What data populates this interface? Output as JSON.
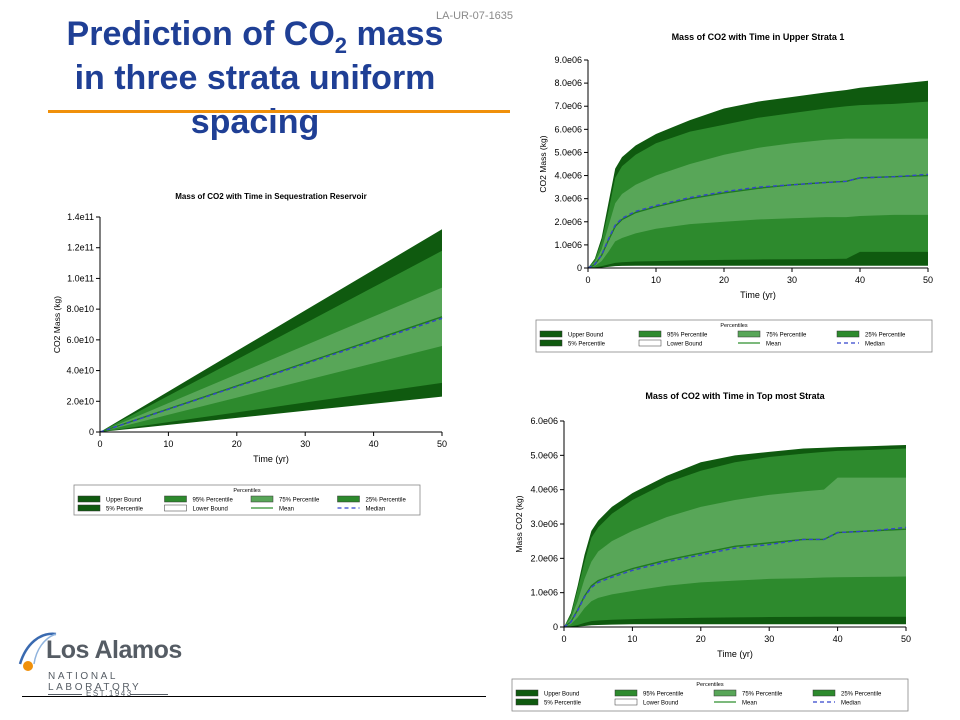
{
  "slide": {
    "title_line1_pre": "Prediction of CO",
    "title_line1_sub": "2",
    "title_line1_post": " mass",
    "title_line2": "in three strata uniform",
    "title_line3": "spacing",
    "report_id": "LA-UR-07-1635",
    "colors": {
      "title": "#1f3f95",
      "accent_rule": "#f0900a"
    }
  },
  "logo": {
    "name": "Los Alamos",
    "subtitle": "NATIONAL LABORATORY",
    "established": "EST.1943"
  },
  "legend": {
    "header": "Percentiles",
    "items": [
      {
        "label": "Upper Bound",
        "color": "#0f5a0f",
        "style": "fill"
      },
      {
        "label": "95% Percentile",
        "color": "#2d8a2d",
        "style": "fill"
      },
      {
        "label": "75% Percentile",
        "color": "#58a658",
        "style": "fill"
      },
      {
        "label": "25% Percentile",
        "color": "#2d8a2d",
        "style": "fill"
      },
      {
        "label": "5% Percentile",
        "color": "#0f5a0f",
        "style": "fill"
      },
      {
        "label": "Lower Bound",
        "color": "#ffffff",
        "style": "fill"
      },
      {
        "label": "Mean",
        "color": "#2f8f2f",
        "style": "line"
      },
      {
        "label": "Median",
        "color": "#3344cc",
        "style": "dash"
      }
    ]
  },
  "chart_data": [
    {
      "type": "area",
      "title": "Mass of CO2 with Time in Sequestration Reservoir",
      "xlabel": "Time (yr)",
      "ylabel": "CO2 Mass (kg)",
      "xlim": [
        0,
        50
      ],
      "ylim": [
        0,
        140000000000
      ],
      "xticks": [
        0,
        10,
        20,
        30,
        40,
        50
      ],
      "xtick_labels": [
        "0",
        "10",
        "20",
        "30",
        "40",
        "50"
      ],
      "yticks": [
        0,
        20000000000,
        40000000000,
        60000000000,
        80000000000,
        100000000000,
        120000000000,
        140000000000
      ],
      "ytick_labels": [
        "0",
        "2.0e10",
        "4.0e10",
        "6.0e10",
        "8.0e10",
        "1.0e11",
        "1.2e11",
        "1.4e11"
      ],
      "x": [
        0,
        10,
        20,
        30,
        40,
        50
      ],
      "series": [
        {
          "name": "Upper Bound",
          "values": [
            0,
            26400000000,
            52800000000,
            79200000000,
            105600000000,
            132000000000
          ]
        },
        {
          "name": "95% Percentile",
          "values": [
            0,
            23600000000,
            47200000000,
            70800000000,
            94400000000,
            118000000000
          ]
        },
        {
          "name": "75% Percentile",
          "values": [
            0,
            18800000000,
            37600000000,
            56400000000,
            75200000000,
            94000000000
          ]
        },
        {
          "name": "Mean",
          "values": [
            0,
            15000000000,
            30000000000,
            45000000000,
            60000000000,
            75000000000
          ]
        },
        {
          "name": "Median",
          "values": [
            0,
            14800000000,
            29600000000,
            44400000000,
            59200000000,
            74000000000
          ]
        },
        {
          "name": "25% Percentile",
          "values": [
            0,
            11200000000,
            22400000000,
            33600000000,
            44800000000,
            56000000000
          ]
        },
        {
          "name": "5% Percentile",
          "values": [
            0,
            6400000000,
            12800000000,
            19200000000,
            25600000000,
            32000000000
          ]
        },
        {
          "name": "Lower Bound",
          "values": [
            0,
            4600000000,
            9200000000,
            13800000000,
            18400000000,
            23000000000
          ]
        }
      ],
      "grid": false,
      "legend_position": "bottom"
    },
    {
      "type": "area",
      "title": "Mass of CO2 with Time in Upper Strata 1",
      "xlabel": "Time (yr)",
      "ylabel": "CO2 Mass (kg)",
      "xlim": [
        0,
        50
      ],
      "ylim": [
        0,
        9000000
      ],
      "xticks": [
        0,
        10,
        20,
        30,
        40,
        50
      ],
      "xtick_labels": [
        "0",
        "10",
        "20",
        "30",
        "40",
        "50"
      ],
      "yticks": [
        0,
        1000000,
        2000000,
        3000000,
        4000000,
        5000000,
        6000000,
        7000000,
        8000000,
        9000000
      ],
      "ytick_labels": [
        "0",
        "1.0e06",
        "2.0e06",
        "3.0e06",
        "4.0e06",
        "5.0e06",
        "6.0e06",
        "7.0e06",
        "8.0e06",
        "9.0e06"
      ],
      "x": [
        0,
        1,
        2,
        3,
        4,
        5,
        7,
        10,
        15,
        20,
        25,
        30,
        35,
        38,
        40,
        45,
        50
      ],
      "series": [
        {
          "name": "Upper Bound",
          "values": [
            0,
            400000,
            1300000,
            2800000,
            4300000,
            4800000,
            5300000,
            5800000,
            6400000,
            6900000,
            7200000,
            7400000,
            7600000,
            7700000,
            7800000,
            7950000,
            8100000
          ]
        },
        {
          "name": "95% Percentile",
          "values": [
            0,
            350000,
            1150000,
            2450000,
            3900000,
            4400000,
            4900000,
            5400000,
            5900000,
            6200000,
            6500000,
            6700000,
            6900000,
            7000000,
            7050000,
            7100000,
            7200000
          ]
        },
        {
          "name": "75% Percentile",
          "values": [
            0,
            250000,
            800000,
            1800000,
            2800000,
            3200000,
            3600000,
            4000000,
            4500000,
            4900000,
            5200000,
            5400000,
            5550000,
            5600000,
            5600000,
            5600000,
            5600000
          ]
        },
        {
          "name": "Mean",
          "values": [
            0,
            150000,
            550000,
            1200000,
            1800000,
            2100000,
            2400000,
            2650000,
            3000000,
            3250000,
            3450000,
            3600000,
            3700000,
            3750000,
            3900000,
            3950000,
            4000000
          ]
        },
        {
          "name": "Median",
          "values": [
            0,
            160000,
            560000,
            1250000,
            1850000,
            2150000,
            2450000,
            2700000,
            3050000,
            3300000,
            3500000,
            3600000,
            3700000,
            3750000,
            3900000,
            3950000,
            4050000
          ]
        },
        {
          "name": "25% Percentile",
          "values": [
            0,
            80000,
            300000,
            700000,
            1150000,
            1300000,
            1500000,
            1700000,
            1900000,
            2000000,
            2100000,
            2150000,
            2200000,
            2200000,
            2250000,
            2300000,
            2300000
          ]
        },
        {
          "name": "5% Percentile",
          "values": [
            0,
            20000,
            80000,
            150000,
            220000,
            250000,
            280000,
            300000,
            330000,
            350000,
            370000,
            380000,
            390000,
            400000,
            700000,
            700000,
            700000
          ]
        },
        {
          "name": "Lower Bound",
          "values": [
            0,
            5000,
            20000,
            50000,
            80000,
            90000,
            100000,
            100000,
            100000,
            100000,
            100000,
            100000,
            100000,
            100000,
            100000,
            100000,
            100000
          ]
        }
      ],
      "grid": false,
      "legend_position": "bottom"
    },
    {
      "type": "area",
      "title": "Mass of CO2 with Time in Top most Strata",
      "xlabel": "Time (yr)",
      "ylabel": "Mass CO2 (kg)",
      "xlim": [
        0,
        50
      ],
      "ylim": [
        0,
        6000000
      ],
      "xticks": [
        0,
        10,
        20,
        30,
        40,
        50
      ],
      "xtick_labels": [
        "0",
        "10",
        "20",
        "30",
        "40",
        "50"
      ],
      "yticks": [
        0,
        1000000,
        2000000,
        3000000,
        4000000,
        5000000,
        6000000
      ],
      "ytick_labels": [
        "0",
        "1.0e06",
        "2.0e06",
        "3.0e06",
        "4.0e06",
        "5.0e06",
        "6.0e06"
      ],
      "x": [
        0,
        1,
        2,
        3,
        4,
        5,
        7,
        10,
        15,
        20,
        25,
        30,
        35,
        38,
        40,
        45,
        50
      ],
      "series": [
        {
          "name": "Upper Bound",
          "values": [
            0,
            400000,
            1200000,
            2100000,
            2800000,
            3100000,
            3500000,
            3900000,
            4400000,
            4800000,
            5000000,
            5100000,
            5200000,
            5220000,
            5240000,
            5270000,
            5300000
          ]
        },
        {
          "name": "95% Percentile",
          "values": [
            0,
            350000,
            1100000,
            1900000,
            2600000,
            2900000,
            3300000,
            3700000,
            4200000,
            4550000,
            4800000,
            4950000,
            5050000,
            5100000,
            5130000,
            5160000,
            5200000
          ]
        },
        {
          "name": "75% Percentile",
          "values": [
            0,
            250000,
            750000,
            1400000,
            1900000,
            2200000,
            2500000,
            2800000,
            3200000,
            3500000,
            3700000,
            3850000,
            3950000,
            4000000,
            4350000,
            4350000,
            4350000
          ]
        },
        {
          "name": "Mean",
          "values": [
            0,
            150000,
            500000,
            900000,
            1200000,
            1350000,
            1500000,
            1700000,
            1950000,
            2150000,
            2350000,
            2450000,
            2550000,
            2550000,
            2750000,
            2800000,
            2850000
          ]
        },
        {
          "name": "Median",
          "values": [
            0,
            140000,
            480000,
            880000,
            1150000,
            1300000,
            1450000,
            1650000,
            1900000,
            2100000,
            2300000,
            2400000,
            2550000,
            2550000,
            2750000,
            2800000,
            2900000
          ]
        },
        {
          "name": "25% Percentile",
          "values": [
            0,
            80000,
            280000,
            550000,
            750000,
            850000,
            950000,
            1050000,
            1200000,
            1300000,
            1350000,
            1400000,
            1420000,
            1440000,
            1450000,
            1460000,
            1470000
          ]
        },
        {
          "name": "5% Percentile",
          "values": [
            0,
            20000,
            60000,
            120000,
            170000,
            190000,
            210000,
            230000,
            250000,
            270000,
            280000,
            290000,
            295000,
            300000,
            300000,
            300000,
            300000
          ]
        },
        {
          "name": "Lower Bound",
          "values": [
            0,
            5000,
            15000,
            30000,
            50000,
            60000,
            70000,
            80000,
            80000,
            80000,
            80000,
            80000,
            80000,
            80000,
            80000,
            80000,
            80000
          ]
        }
      ],
      "grid": false,
      "legend_position": "bottom"
    }
  ]
}
